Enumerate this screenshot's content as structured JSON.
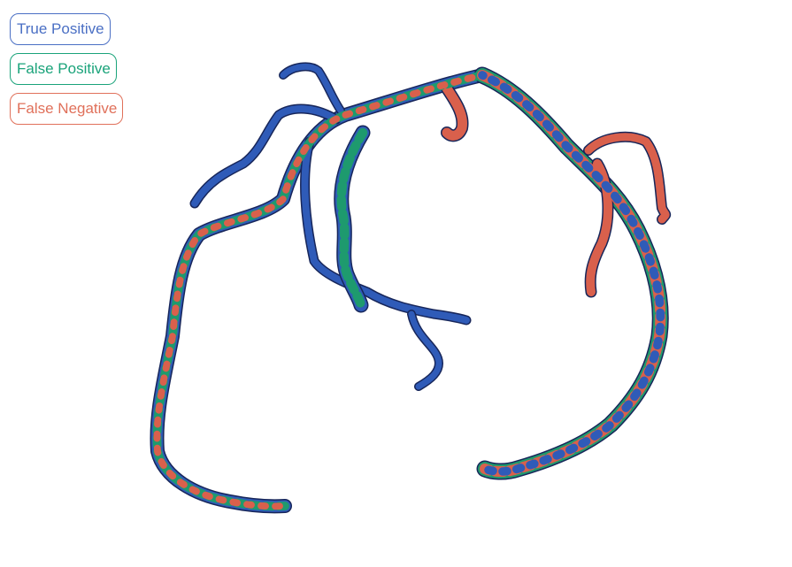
{
  "legend": {
    "items": [
      {
        "key": "tp",
        "label": "True Positive",
        "color": "#4a6fc4"
      },
      {
        "key": "fp",
        "label": "False Positive",
        "color": "#1aa37a"
      },
      {
        "key": "fn",
        "label": "False Negative",
        "color": "#e0705a"
      }
    ]
  },
  "colors": {
    "true_positive_fill": "#2f5bb8",
    "true_positive_edge": "#17265a",
    "false_positive_fill": "#1e9a6e",
    "false_negative_fill": "#d9604c",
    "background": "#ffffff"
  }
}
